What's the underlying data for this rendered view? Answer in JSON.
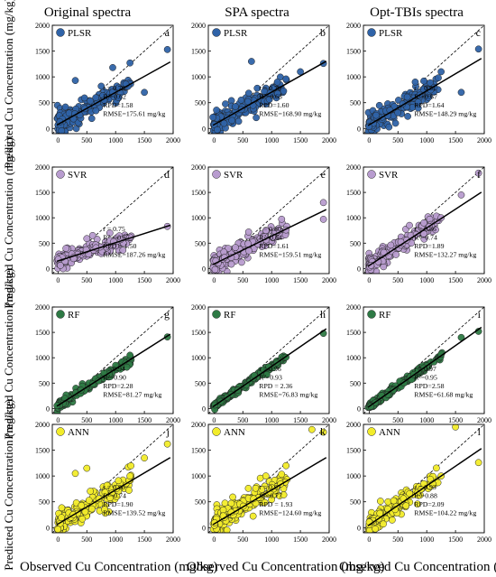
{
  "figure": {
    "column_titles": [
      "Original spectra",
      "SPA spectra",
      "Opt-TBIs spectra"
    ],
    "ylabel": "Predicted Cu Concentration (mg/kg)",
    "xlabel": "Observed Cu Concentration (mg/kg)"
  },
  "chart_data": [
    {
      "type": "scatter",
      "model": "PLSR",
      "letter": "a",
      "color": "#2f63a8",
      "stats": [
        "r = 0.78",
        "R²=0.62",
        "RPD=1.58",
        "RMSE=175.61 mg/kg"
      ],
      "xlim": [
        -100,
        2000
      ],
      "ylim": [
        -100,
        2000
      ],
      "xticks": [
        0,
        500,
        1000,
        1500,
        2000
      ],
      "yticks": [
        0,
        500,
        1000,
        1500,
        2000
      ],
      "fit": {
        "slope": 0.62,
        "intercept": 80
      },
      "highlights": [
        [
          1900,
          1530
        ],
        [
          1250,
          1270
        ],
        [
          950,
          1180
        ],
        [
          300,
          930
        ],
        [
          750,
          820
        ],
        [
          1050,
          600
        ],
        [
          1500,
          700
        ]
      ],
      "seed": 11,
      "noise": 190
    },
    {
      "type": "scatter",
      "model": "PLSR",
      "letter": "b",
      "color": "#2f63a8",
      "stats": [
        "r = 0.79",
        "R²=0.63",
        "RPD=1.60",
        "RMSE=168.90 mg/kg"
      ],
      "xlim": [
        -100,
        2000
      ],
      "ylim": [
        -100,
        2000
      ],
      "xticks": [
        0,
        500,
        1000,
        1500,
        2000
      ],
      "yticks": [
        0,
        500,
        1000,
        1500,
        2000
      ],
      "fit": {
        "slope": 0.63,
        "intercept": 75
      },
      "highlights": [
        [
          1900,
          1260
        ],
        [
          1250,
          960
        ],
        [
          750,
          780
        ],
        [
          650,
          1300
        ],
        [
          1100,
          900
        ],
        [
          1500,
          1100
        ]
      ],
      "seed": 23,
      "noise": 180
    },
    {
      "type": "scatter",
      "model": "PLSR",
      "letter": "c",
      "color": "#2f63a8",
      "stats": [
        "r = 0.81",
        "R²=0.67",
        "RPD=1.64",
        "RMSE=148.29 mg/kg"
      ],
      "xlim": [
        -100,
        2000
      ],
      "ylim": [
        -100,
        2000
      ],
      "xticks": [
        0,
        500,
        1000,
        1500,
        2000
      ],
      "yticks": [
        0,
        500,
        1000,
        1500,
        2000
      ],
      "fit": {
        "slope": 0.66,
        "intercept": 70
      },
      "highlights": [
        [
          1900,
          1540
        ],
        [
          1250,
          1100
        ],
        [
          950,
          920
        ],
        [
          1600,
          700
        ],
        [
          800,
          900
        ]
      ],
      "seed": 37,
      "noise": 160
    },
    {
      "type": "scatter",
      "model": "SVR",
      "letter": "d",
      "color": "#b89ccf",
      "stats": [
        "r = 0.75",
        "R² = 0.57",
        "RPD = 1.50",
        "RMSE=187.26 mg/kg"
      ],
      "xlim": [
        -100,
        2000
      ],
      "ylim": [
        -100,
        2000
      ],
      "xticks": [
        0,
        500,
        1000,
        1500,
        2000
      ],
      "yticks": [
        0,
        500,
        1000,
        1500,
        2000
      ],
      "fit": {
        "slope": 0.36,
        "intercept": 150
      },
      "highlights": [
        [
          1900,
          830
        ],
        [
          1250,
          620
        ],
        [
          900,
          700
        ],
        [
          600,
          650
        ],
        [
          500,
          590
        ]
      ],
      "seed": 41,
      "noise": 110
    },
    {
      "type": "scatter",
      "model": "SVR",
      "letter": "e",
      "color": "#b89ccf",
      "stats": [
        "r = 0.80",
        "R²=0.64",
        "RPD=1.61",
        "RMSE=159.51 mg/kg"
      ],
      "xlim": [
        -100,
        2000
      ],
      "ylim": [
        -100,
        2000
      ],
      "xticks": [
        0,
        500,
        1000,
        1500,
        2000
      ],
      "yticks": [
        0,
        500,
        1000,
        1500,
        2000
      ],
      "fit": {
        "slope": 0.55,
        "intercept": 90
      },
      "highlights": [
        [
          1900,
          1300
        ],
        [
          1900,
          970
        ],
        [
          1250,
          760
        ],
        [
          600,
          720
        ],
        [
          900,
          750
        ]
      ],
      "seed": 53,
      "noise": 150
    },
    {
      "type": "scatter",
      "model": "SVR",
      "letter": "f",
      "color": "#b89ccf",
      "stats": [
        "r = 0.86",
        "R²=0.74",
        "RPD=1.89",
        "RMSE=132.27 mg/kg"
      ],
      "xlim": [
        -100,
        2000
      ],
      "ylim": [
        -100,
        2000
      ],
      "xticks": [
        0,
        500,
        1000,
        1500,
        2000
      ],
      "yticks": [
        0,
        500,
        1000,
        1500,
        2000
      ],
      "fit": {
        "slope": 0.74,
        "intercept": 60
      },
      "highlights": [
        [
          1900,
          1880
        ],
        [
          1600,
          1450
        ],
        [
          1250,
          1000
        ],
        [
          950,
          900
        ],
        [
          700,
          850
        ]
      ],
      "seed": 67,
      "noise": 140
    },
    {
      "type": "scatter",
      "model": "RF",
      "letter": "g",
      "color": "#2e7a45",
      "stats": [
        "r = 0.94",
        "R²=0.90",
        "RPD=2.28",
        "RMSE=81.27 mg/kg"
      ],
      "xlim": [
        -100,
        2000
      ],
      "ylim": [
        -100,
        2000
      ],
      "xticks": [
        0,
        500,
        1000,
        1500,
        2000
      ],
      "yticks": [
        0,
        500,
        1000,
        1500,
        2000
      ],
      "fit": {
        "slope": 0.72,
        "intercept": 60
      },
      "highlights": [
        [
          1900,
          1410
        ],
        [
          1250,
          1050
        ],
        [
          1000,
          850
        ],
        [
          800,
          700
        ]
      ],
      "seed": 71,
      "noise": 70
    },
    {
      "type": "scatter",
      "model": "RF",
      "letter": "h",
      "color": "#2e7a45",
      "stats": [
        "r = 0.96",
        "R²=0.93",
        "RPD = 2.36",
        "RMSE=76.83 mg/kg"
      ],
      "xlim": [
        -100,
        2000
      ],
      "ylim": [
        -100,
        2000
      ],
      "xticks": [
        0,
        500,
        1000,
        1500,
        2000
      ],
      "yticks": [
        0,
        500,
        1000,
        1500,
        2000
      ],
      "fit": {
        "slope": 0.78,
        "intercept": 50
      },
      "highlights": [
        [
          1900,
          1480
        ],
        [
          1250,
          1010
        ],
        [
          950,
          820
        ],
        [
          700,
          650
        ]
      ],
      "seed": 83,
      "noise": 55
    },
    {
      "type": "scatter",
      "model": "RF",
      "letter": "i",
      "color": "#2e7a45",
      "stats": [
        "r = 0.97",
        "R²=0.95",
        "RPD=2.58",
        "RMSE=61.68 mg/kg"
      ],
      "xlim": [
        -100,
        2000
      ],
      "ylim": [
        -100,
        2000
      ],
      "xticks": [
        0,
        500,
        1000,
        1500,
        2000
      ],
      "yticks": [
        0,
        500,
        1000,
        1500,
        2000
      ],
      "fit": {
        "slope": 0.8,
        "intercept": 40
      },
      "highlights": [
        [
          1900,
          1520
        ],
        [
          1600,
          1400
        ],
        [
          1250,
          1070
        ],
        [
          950,
          800
        ]
      ],
      "seed": 97,
      "noise": 50
    },
    {
      "type": "scatter",
      "model": "ANN",
      "letter": "j",
      "color": "#f2ec2a",
      "stats": [
        "r = 0.86",
        "R²=0.74",
        "RPD=1.90",
        "RMSE=139.52 mg/kg"
      ],
      "xlim": [
        -100,
        2000
      ],
      "ylim": [
        -100,
        2000
      ],
      "xticks": [
        0,
        500,
        1000,
        1500,
        2000
      ],
      "yticks": [
        0,
        500,
        1000,
        1500,
        2000
      ],
      "fit": {
        "slope": 0.66,
        "intercept": 70
      },
      "highlights": [
        [
          1900,
          1620
        ],
        [
          1500,
          1350
        ],
        [
          1250,
          1000
        ],
        [
          500,
          1150
        ],
        [
          300,
          1050
        ]
      ],
      "seed": 101,
      "noise": 190
    },
    {
      "type": "scatter",
      "model": "ANN",
      "letter": "k",
      "color": "#f2ec2a",
      "stats": [
        "r = 0.87",
        "R²=0.77",
        "RPD = 1.93",
        "RMSE=124.60 mg/kg"
      ],
      "xlim": [
        -100,
        2000
      ],
      "ylim": [
        -100,
        2000
      ],
      "xticks": [
        0,
        500,
        1000,
        1500,
        2000
      ],
      "yticks": [
        0,
        500,
        1000,
        1500,
        2000
      ],
      "fit": {
        "slope": 0.66,
        "intercept": 70
      },
      "highlights": [
        [
          1900,
          1850
        ],
        [
          1700,
          1900
        ],
        [
          1250,
          1200
        ],
        [
          900,
          1000
        ]
      ],
      "seed": 113,
      "noise": 170
    },
    {
      "type": "scatter",
      "model": "ANN",
      "letter": "l",
      "color": "#f2ec2a",
      "stats": [
        "r = 0.93",
        "R²=0.88",
        "RPD=2.09",
        "RMSE=104.22 mg/kg"
      ],
      "xlim": [
        -100,
        2000
      ],
      "ylim": [
        -100,
        2000
      ],
      "xticks": [
        0,
        500,
        1000,
        1500,
        2000
      ],
      "yticks": [
        0,
        500,
        1000,
        1500,
        2000
      ],
      "fit": {
        "slope": 0.76,
        "intercept": 50
      },
      "highlights": [
        [
          1900,
          1260
        ],
        [
          1500,
          1950
        ],
        [
          1250,
          1000
        ],
        [
          950,
          850
        ]
      ],
      "seed": 127,
      "noise": 130
    }
  ]
}
